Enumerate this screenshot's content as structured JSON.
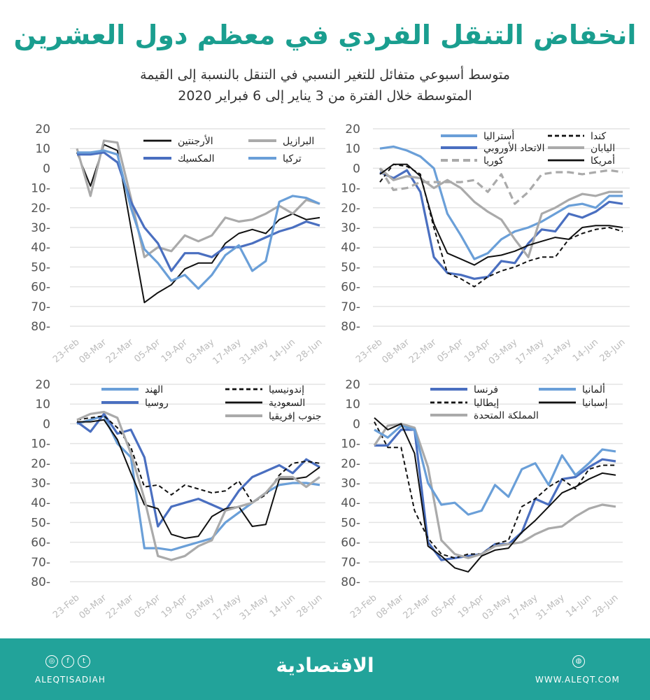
{
  "title": "انخفاض التنقل الفردي في معظم دول العشرين",
  "subtitle_line1": "متوسط أسبوعي متفائل للتغير النسبي في التنقل بالنسبة إلى القيمة",
  "subtitle_line2": "المتوسطة خلال الفترة من 3 يناير إلى 6 فبراير 2020",
  "colors": {
    "title": "#1a9e8f",
    "footer": "#22a39a",
    "light_blue": "#6a9fd8",
    "blue": "#4a6fc0",
    "gray": "#aaaaaa",
    "black": "#111111"
  },
  "footer": {
    "brand": "الاقتصادية",
    "handle": "ALEQTISADIAH",
    "website": "WWW.ALEQT.COM",
    "social_icons": [
      "instagram-icon",
      "facebook-icon",
      "twitter-icon"
    ],
    "web_icon": "globe-icon"
  },
  "chart_data": [
    {
      "type": "line",
      "ylim": [
        -80,
        20
      ],
      "yticks": [
        20,
        10,
        0,
        -10,
        -20,
        -30,
        -40,
        -50,
        -60,
        -70,
        -80
      ],
      "ytick_labels": [
        "20",
        "10",
        "0",
        "10-",
        "20-",
        "30-",
        "40-",
        "50-",
        "60-",
        "70-",
        "80-"
      ],
      "xtick_labels": [
        "23-Feb",
        "08-Mar",
        "22-Mar",
        "05-Apr",
        "19-Apr",
        "03-May",
        "17-May",
        "31-May",
        "14-Jun",
        "28-Jun"
      ],
      "grid": true,
      "series": [
        {
          "name": "الأرجنتين",
          "color": "#111111",
          "style": "solid",
          "values": [
            8,
            -9,
            12,
            9,
            -30,
            -68,
            -63,
            -59,
            -51,
            -48,
            -48,
            -38,
            -33,
            -31,
            -33,
            -26,
            -23,
            -26,
            -25
          ]
        },
        {
          "name": "البرازيل",
          "color": "#aaaaaa",
          "style": "solid",
          "values": [
            10,
            -14,
            14,
            13,
            -15,
            -45,
            -40,
            -42,
            -34,
            -37,
            -34,
            -25,
            -27,
            -26,
            -23,
            -19,
            -23,
            -16,
            -18
          ]
        },
        {
          "name": "المكسيك",
          "color": "#4a6fc0",
          "style": "solid",
          "values": [
            7,
            7,
            8,
            3,
            -17,
            -30,
            -38,
            -52,
            -43,
            -43,
            -45,
            -40,
            -40,
            -38,
            -35,
            -32,
            -30,
            -27,
            -29
          ]
        },
        {
          "name": "تركيا",
          "color": "#6a9fd8",
          "style": "solid",
          "values": [
            8,
            8,
            9,
            7,
            -20,
            -41,
            -48,
            -57,
            -54,
            -61,
            -54,
            -44,
            -39,
            -52,
            -47,
            -17,
            -14,
            -15,
            -18
          ]
        }
      ]
    },
    {
      "type": "line",
      "ylim": [
        -80,
        20
      ],
      "yticks": [
        20,
        10,
        0,
        -10,
        -20,
        -30,
        -40,
        -50,
        -60,
        -70,
        -80
      ],
      "ytick_labels": [
        "20",
        "10",
        "0",
        "10-",
        "20-",
        "30-",
        "40-",
        "50-",
        "60-",
        "70-",
        "80-"
      ],
      "xtick_labels": [
        "23-Feb",
        "08-Mar",
        "22-Mar",
        "05-Apr",
        "19-Apr",
        "03-May",
        "17-May",
        "31-May",
        "14-Jun",
        "28-Jun"
      ],
      "grid": true,
      "series": [
        {
          "name": "أستراليا",
          "color": "#6a9fd8",
          "style": "solid",
          "values": [
            10,
            11,
            9,
            6,
            0,
            -23,
            -34,
            -46,
            -43,
            -36,
            -32,
            -30,
            -27,
            -23,
            -19,
            -18,
            -20,
            -14,
            -14
          ]
        },
        {
          "name": "الاتحاد الأوروبي",
          "color": "#4a6fc0",
          "style": "solid",
          "values": [
            -2,
            -5,
            -1,
            -12,
            -45,
            -53,
            -54,
            -56,
            -55,
            -47,
            -48,
            -38,
            -31,
            -32,
            -23,
            -25,
            -22,
            -17,
            -18
          ]
        },
        {
          "name": "كوريا",
          "color": "#aaaaaa",
          "style": "dashed",
          "values": [
            0,
            -11,
            -10,
            -7,
            -7,
            -7,
            -7,
            -6,
            -12,
            -3,
            -18,
            -12,
            -3,
            -2,
            -2,
            -3,
            -2,
            -1,
            -2
          ]
        },
        {
          "name": "كندا",
          "color": "#111111",
          "style": "dashed",
          "values": [
            -7,
            2,
            1,
            -3,
            -30,
            -53,
            -56,
            -60,
            -55,
            -52,
            -50,
            -47,
            -45,
            -45,
            -36,
            -33,
            -31,
            -30,
            -32
          ]
        },
        {
          "name": "اليابان",
          "color": "#aaaaaa",
          "style": "solid",
          "values": [
            0,
            -6,
            -4,
            -5,
            -10,
            -6,
            -10,
            -17,
            -22,
            -26,
            -36,
            -45,
            -23,
            -20,
            -16,
            -13,
            -14,
            -12,
            -12
          ]
        },
        {
          "name": "أمريكا",
          "color": "#111111",
          "style": "solid",
          "values": [
            -3,
            2,
            2,
            -4,
            -28,
            -43,
            -46,
            -49,
            -45,
            -44,
            -42,
            -39,
            -37,
            -35,
            -36,
            -30,
            -29,
            -29,
            -30
          ]
        }
      ]
    },
    {
      "type": "line",
      "ylim": [
        -80,
        20
      ],
      "yticks": [
        20,
        10,
        0,
        -10,
        -20,
        -30,
        -40,
        -50,
        -60,
        -70,
        -80
      ],
      "ytick_labels": [
        "20",
        "10",
        "0",
        "10-",
        "20-",
        "30-",
        "40-",
        "50-",
        "60-",
        "70-",
        "80-"
      ],
      "xtick_labels": [
        "23-Feb",
        "08-Mar",
        "22-Mar",
        "05-Apr",
        "19-Apr",
        "03-May",
        "17-May",
        "31-May",
        "14-Jun",
        "28-Jun"
      ],
      "grid": true,
      "series": [
        {
          "name": "الهند",
          "color": "#6a9fd8",
          "style": "solid",
          "values": [
            0,
            2,
            4,
            -10,
            -17,
            -63,
            -63,
            -64,
            -62,
            -60,
            -58,
            -50,
            -45,
            -40,
            -35,
            -31,
            -30,
            -30,
            -31
          ]
        },
        {
          "name": "روسيا",
          "color": "#4a6fc0",
          "style": "solid",
          "values": [
            1,
            -4,
            5,
            -5,
            -3,
            -17,
            -52,
            -42,
            -40,
            -38,
            -41,
            -44,
            -34,
            -27,
            -24,
            -21,
            -25,
            -18,
            -22
          ]
        },
        {
          "name": "إندونيسيا",
          "color": "#111111",
          "style": "dashed",
          "values": [
            2,
            3,
            4,
            -2,
            -12,
            -32,
            -31,
            -36,
            -31,
            -33,
            -35,
            -34,
            -29,
            -40,
            -36,
            -26,
            -20,
            -19,
            -20
          ]
        },
        {
          "name": "السعودية",
          "color": "#111111",
          "style": "solid",
          "values": [
            1,
            1,
            2,
            -8,
            -25,
            -41,
            -43,
            -56,
            -58,
            -57,
            -47,
            -43,
            -42,
            -52,
            -51,
            -28,
            -28,
            -27,
            -22
          ]
        },
        {
          "name": "جنوب إفريقيا",
          "color": "#aaaaaa",
          "style": "solid",
          "values": [
            2,
            5,
            6,
            3,
            -15,
            -38,
            -67,
            -69,
            -67,
            -62,
            -59,
            -44,
            -42,
            -40,
            -35,
            -27,
            -27,
            -32,
            -27
          ]
        }
      ]
    },
    {
      "type": "line",
      "ylim": [
        -80,
        20
      ],
      "yticks": [
        20,
        10,
        0,
        -10,
        -20,
        -30,
        -40,
        -50,
        -60,
        -70,
        -80
      ],
      "ytick_labels": [
        "20",
        "10",
        "0",
        "10-",
        "20-",
        "30-",
        "40-",
        "50-",
        "60-",
        "70-",
        "80-"
      ],
      "xtick_labels": [
        "23-Feb",
        "08-Mar",
        "22-Mar",
        "05-Apr",
        "19-Apr",
        "03-May",
        "17-May",
        "31-May",
        "14-Jun",
        "28-Jun"
      ],
      "grid": true,
      "series": [
        {
          "name": "فرنسا",
          "color": "#4a6fc0",
          "style": "solid",
          "values": [
            -11,
            -11,
            -3,
            -3,
            -60,
            -69,
            -68,
            -67,
            -66,
            -61,
            -61,
            -55,
            -38,
            -41,
            -28,
            -27,
            -22,
            -18,
            -19
          ]
        },
        {
          "name": "إيطاليا",
          "color": "#111111",
          "style": "dashed",
          "values": [
            1,
            -12,
            -12,
            -44,
            -58,
            -66,
            -68,
            -66,
            -66,
            -61,
            -59,
            -42,
            -38,
            -32,
            -28,
            -33,
            -23,
            -21,
            -21
          ]
        },
        {
          "name": "المملكة المتحدة",
          "color": "#aaaaaa",
          "style": "solid",
          "values": [
            -11,
            -1,
            0,
            -2,
            -22,
            -59,
            -66,
            -68,
            -66,
            -62,
            -61,
            -60,
            -56,
            -53,
            -52,
            -47,
            -43,
            -41,
            -42
          ]
        },
        {
          "name": "ألمانيا",
          "color": "#6a9fd8",
          "style": "solid",
          "values": [
            -3,
            -7,
            -1,
            -3,
            -30,
            -41,
            -40,
            -46,
            -44,
            -31,
            -37,
            -23,
            -20,
            -31,
            -16,
            -26,
            -20,
            -13,
            -14
          ]
        },
        {
          "name": "إسبانيا",
          "color": "#111111",
          "style": "solid",
          "values": [
            3,
            -3,
            0,
            -15,
            -62,
            -67,
            -73,
            -75,
            -67,
            -64,
            -63,
            -55,
            -49,
            -42,
            -35,
            -32,
            -28,
            -25,
            -26
          ]
        }
      ]
    }
  ]
}
